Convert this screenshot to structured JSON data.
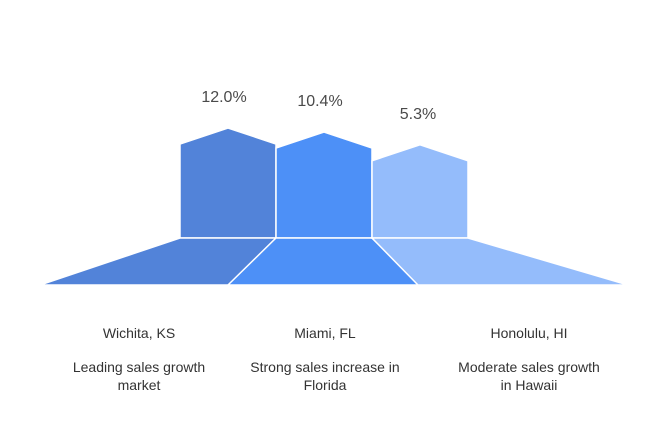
{
  "chart_data": {
    "type": "bar",
    "categories": [
      "Wichita, KS",
      "Miami, FL",
      "Honolulu, HI"
    ],
    "values": [
      12.0,
      10.4,
      5.3
    ],
    "value_labels": [
      "12.0%",
      "10.4%",
      "5.3%"
    ],
    "descriptions": [
      [
        "Leading sales growth",
        "market"
      ],
      [
        "Strong sales increase in",
        "Florida"
      ],
      [
        "Moderate sales growth",
        "in Hawaii"
      ]
    ],
    "colors": [
      "#5283d9",
      "#4d90f7",
      "#94bcfb"
    ],
    "ylim": [
      0,
      12.0
    ],
    "title": "",
    "xlabel": "",
    "ylabel": ""
  }
}
